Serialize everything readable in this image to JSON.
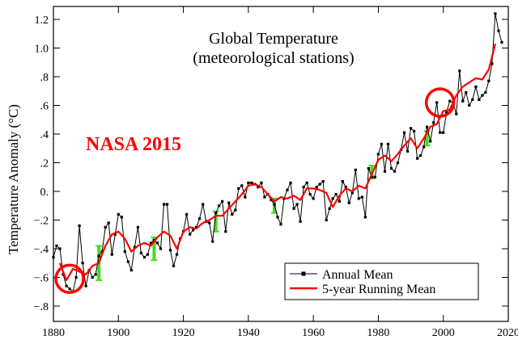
{
  "chart_data": {
    "type": "line",
    "title": "Global Temperature",
    "subtitle": "(meteorological stations)",
    "ylabel": "Temperature Anomaly (°C)",
    "xlabel": "",
    "annotation": "NASA 2015",
    "xlim": [
      1880,
      2020
    ],
    "ylim": [
      -0.85,
      1.3
    ],
    "x_ticks": [
      1880,
      1900,
      1920,
      1940,
      1960,
      1980,
      2000,
      2020
    ],
    "y_ticks": [
      {
        "value": -0.8,
        "label": "−.8"
      },
      {
        "value": -0.6,
        "label": "−.6"
      },
      {
        "value": -0.4,
        "label": "−.4"
      },
      {
        "value": -0.2,
        "label": "−.2"
      },
      {
        "value": 0.0,
        "label": "0."
      },
      {
        "value": 0.2,
        "label": ".2"
      },
      {
        "value": 0.4,
        "label": ".4"
      },
      {
        "value": 0.6,
        "label": ".6"
      },
      {
        "value": 0.8,
        "label": ".8"
      },
      {
        "value": 1.0,
        "label": "1.0"
      },
      {
        "value": 1.2,
        "label": "1.2"
      }
    ],
    "grid": false,
    "legend_position": "bottom-right",
    "colors": {
      "annual": "#000000",
      "running": "#ff0000",
      "uncertainty": "#44dd22",
      "annotation": "#ff0000",
      "circles": "#ff0000"
    },
    "series": [
      {
        "name": "Annual Mean",
        "style": "line-with-markers",
        "x": [
          1880,
          1881,
          1882,
          1883,
          1884,
          1885,
          1886,
          1887,
          1888,
          1889,
          1890,
          1891,
          1892,
          1893,
          1894,
          1895,
          1896,
          1897,
          1898,
          1899,
          1900,
          1901,
          1902,
          1903,
          1904,
          1905,
          1906,
          1907,
          1908,
          1909,
          1910,
          1911,
          1912,
          1913,
          1914,
          1915,
          1916,
          1917,
          1918,
          1919,
          1920,
          1921,
          1922,
          1923,
          1924,
          1925,
          1926,
          1927,
          1928,
          1929,
          1930,
          1931,
          1932,
          1933,
          1934,
          1935,
          1936,
          1937,
          1938,
          1939,
          1940,
          1941,
          1942,
          1943,
          1944,
          1945,
          1946,
          1947,
          1948,
          1949,
          1950,
          1951,
          1952,
          1953,
          1954,
          1955,
          1956,
          1957,
          1958,
          1959,
          1960,
          1961,
          1962,
          1963,
          1964,
          1965,
          1966,
          1967,
          1968,
          1969,
          1970,
          1971,
          1972,
          1973,
          1974,
          1975,
          1976,
          1977,
          1978,
          1979,
          1980,
          1981,
          1982,
          1983,
          1984,
          1985,
          1986,
          1987,
          1988,
          1989,
          1990,
          1991,
          1992,
          1993,
          1994,
          1995,
          1996,
          1997,
          1998,
          1999,
          2000,
          2001,
          2002,
          2003,
          2004,
          2005,
          2006,
          2007,
          2008,
          2009,
          2010,
          2011,
          2012,
          2013,
          2014,
          2015,
          2016,
          2017,
          2018
        ],
        "values": [
          -0.46,
          -0.38,
          -0.4,
          -0.58,
          -0.66,
          -0.68,
          -0.7,
          -0.6,
          -0.24,
          -0.5,
          -0.66,
          -0.55,
          -0.6,
          -0.58,
          -0.45,
          -0.42,
          -0.25,
          -0.22,
          -0.44,
          -0.3,
          -0.16,
          -0.18,
          -0.42,
          -0.49,
          -0.55,
          -0.39,
          -0.25,
          -0.43,
          -0.46,
          -0.44,
          -0.36,
          -0.34,
          -0.36,
          -0.4,
          -0.09,
          -0.09,
          -0.41,
          -0.52,
          -0.44,
          -0.33,
          -0.28,
          -0.16,
          -0.3,
          -0.27,
          -0.25,
          -0.19,
          -0.09,
          -0.21,
          -0.22,
          -0.35,
          -0.15,
          -0.1,
          -0.07,
          -0.28,
          -0.08,
          -0.16,
          -0.13,
          0.02,
          0.04,
          -0.04,
          0.06,
          0.06,
          0.05,
          0.03,
          0.06,
          -0.04,
          -0.02,
          -0.06,
          -0.09,
          -0.18,
          -0.23,
          -0.05,
          0.01,
          0.06,
          -0.12,
          -0.09,
          -0.21,
          0.03,
          0.06,
          -0.02,
          -0.05,
          0.03,
          0.05,
          0.07,
          -0.2,
          -0.12,
          -0.05,
          -0.02,
          -0.07,
          0.07,
          0.03,
          -0.08,
          -0.01,
          0.15,
          -0.05,
          -0.04,
          -0.18,
          0.16,
          0.1,
          0.1,
          0.26,
          0.33,
          0.14,
          0.33,
          0.16,
          0.14,
          0.2,
          0.29,
          0.41,
          0.28,
          0.44,
          0.42,
          0.23,
          0.25,
          0.31,
          0.45,
          0.35,
          0.48,
          0.62,
          0.41,
          0.41,
          0.55,
          0.63,
          0.62,
          0.54,
          0.84,
          0.63,
          0.69,
          0.6,
          0.64,
          0.73,
          0.64,
          0.67,
          0.69,
          0.77,
          0.89,
          1.24,
          1.12,
          1.04
        ]
      },
      {
        "name": "5-year Running Mean",
        "style": "line",
        "x": [
          1882,
          1884,
          1886,
          1888,
          1890,
          1892,
          1894,
          1896,
          1898,
          1900,
          1902,
          1904,
          1906,
          1908,
          1910,
          1912,
          1914,
          1916,
          1918,
          1920,
          1922,
          1924,
          1926,
          1928,
          1930,
          1932,
          1934,
          1936,
          1938,
          1940,
          1942,
          1944,
          1946,
          1948,
          1950,
          1952,
          1954,
          1956,
          1958,
          1960,
          1962,
          1964,
          1966,
          1968,
          1970,
          1972,
          1974,
          1976,
          1978,
          1980,
          1982,
          1984,
          1986,
          1988,
          1990,
          1992,
          1994,
          1996,
          1998,
          2000,
          2002,
          2004,
          2006,
          2008,
          2010,
          2012,
          2014,
          2016
        ],
        "values": [
          -0.5,
          -0.62,
          -0.54,
          -0.56,
          -0.58,
          -0.52,
          -0.5,
          -0.38,
          -0.3,
          -0.28,
          -0.33,
          -0.42,
          -0.38,
          -0.36,
          -0.38,
          -0.32,
          -0.28,
          -0.31,
          -0.4,
          -0.28,
          -0.25,
          -0.26,
          -0.22,
          -0.2,
          -0.17,
          -0.17,
          -0.12,
          -0.07,
          -0.02,
          0.04,
          0.05,
          0.03,
          -0.02,
          -0.07,
          -0.04,
          -0.05,
          -0.03,
          -0.06,
          0.02,
          0.02,
          0.01,
          -0.01,
          -0.11,
          -0.03,
          0.02,
          0.0,
          0.04,
          0.02,
          0.12,
          0.22,
          0.25,
          0.21,
          0.26,
          0.32,
          0.37,
          0.3,
          0.37,
          0.45,
          0.47,
          0.56,
          0.57,
          0.67,
          0.73,
          0.76,
          0.79,
          0.78,
          0.85,
          1.03
        ]
      }
    ],
    "uncertainty_bars": [
      {
        "x": 1894,
        "low": -0.62,
        "high": -0.38
      },
      {
        "x": 1911,
        "low": -0.48,
        "high": -0.32
      },
      {
        "x": 1930,
        "low": -0.28,
        "high": -0.14
      },
      {
        "x": 1948,
        "low": -0.15,
        "high": -0.05
      },
      {
        "x": 1978,
        "low": 0.09,
        "high": 0.18
      },
      {
        "x": 1995,
        "low": 0.32,
        "high": 0.42
      }
    ],
    "highlight_circles": [
      {
        "x": 1885,
        "y": -0.61
      },
      {
        "x": 1999,
        "y": 0.62
      }
    ]
  }
}
